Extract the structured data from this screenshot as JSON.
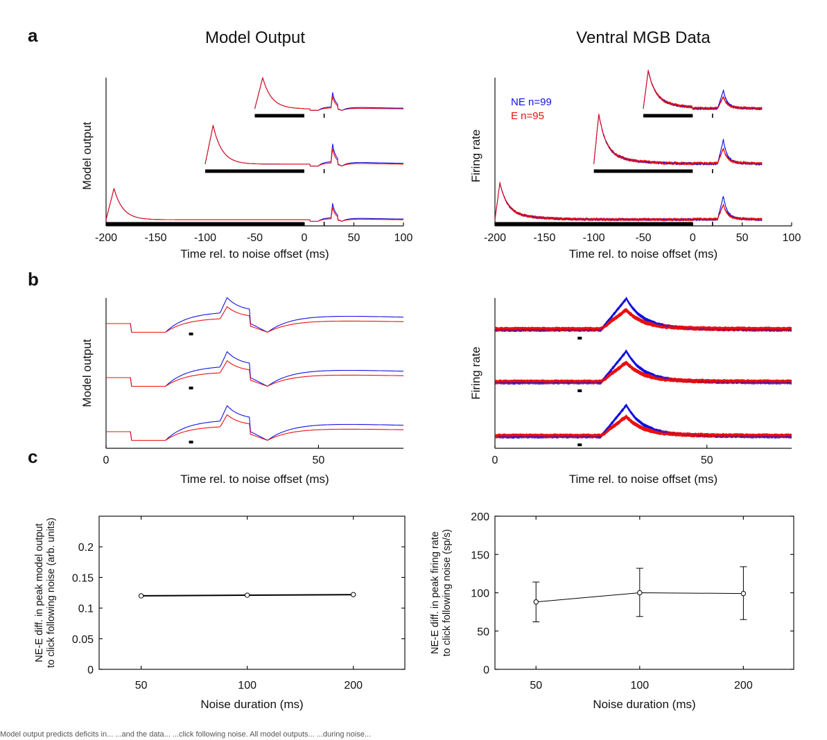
{
  "panels": {
    "a": "a",
    "b": "b",
    "c": "c"
  },
  "titles": {
    "left": "Model Output",
    "right": "Ventral MGB Data"
  },
  "legend": {
    "ne": "NE n=99",
    "e": "E n=95"
  },
  "colors": {
    "ne": "#1010e0",
    "e": "#e81010",
    "axis": "#111111"
  },
  "caption": "Model output predicts deficits in... ...and the data... ...click following noise. All model outputs... ...during noise...",
  "chart_data": [
    {
      "id": "a-left",
      "type": "line",
      "xlabel": "Time rel. to noise offset (ms)",
      "ylabel": "Model output",
      "xlim": [
        -200,
        100
      ],
      "xticks": [
        -200,
        -150,
        -100,
        -50,
        0,
        50,
        100
      ],
      "noise_durations_ms": [
        50,
        100,
        200
      ],
      "click_time_ms": 20,
      "series": [
        {
          "name": "NE"
        },
        {
          "name": "E"
        }
      ]
    },
    {
      "id": "a-right",
      "type": "line",
      "xlabel": "Time rel. to noise offset (ms)",
      "ylabel": "Firing rate",
      "xlim": [
        -200,
        100
      ],
      "xticks": [
        -200,
        -150,
        -100,
        -50,
        0,
        50,
        100
      ],
      "noise_durations_ms": [
        50,
        100,
        200
      ],
      "click_time_ms": 20,
      "series": [
        {
          "name": "NE n=99"
        },
        {
          "name": "E n=95"
        }
      ]
    },
    {
      "id": "b-left",
      "type": "line",
      "xlabel": "Time rel. to noise offset (ms)",
      "ylabel": "Model output",
      "xlim": [
        0,
        70
      ],
      "xticks": [
        0,
        50
      ],
      "click_time_ms": 20
    },
    {
      "id": "b-right",
      "type": "line",
      "xlabel": "Time rel. to noise offset (ms)",
      "ylabel": "Firing rate",
      "xlim": [
        0,
        70
      ],
      "xticks": [
        0,
        50
      ],
      "click_time_ms": 20
    },
    {
      "id": "c-left",
      "type": "line",
      "xlabel": "Noise duration (ms)",
      "ylabel": [
        "NE-E diff. in peak model output",
        "to click following noise (arb. units)"
      ],
      "x": [
        50,
        100,
        200
      ],
      "values": [
        0.12,
        0.121,
        0.122
      ],
      "ylim": [
        0,
        0.25
      ],
      "yticks": [
        0,
        0.05,
        0.1,
        0.15,
        0.2
      ],
      "xticks": [
        50,
        100,
        200
      ]
    },
    {
      "id": "c-right",
      "type": "line",
      "xlabel": "Noise duration (ms)",
      "ylabel": [
        "NE-E diff. in peak firing rate",
        "to click following noise (sp/s)"
      ],
      "x": [
        50,
        100,
        200
      ],
      "values": [
        88,
        100,
        99
      ],
      "err_low": [
        62,
        69,
        65
      ],
      "err_high": [
        114,
        132,
        134
      ],
      "ylim": [
        0,
        200
      ],
      "yticks": [
        0,
        50,
        100,
        150,
        200
      ],
      "xticks": [
        50,
        100,
        200
      ]
    }
  ]
}
